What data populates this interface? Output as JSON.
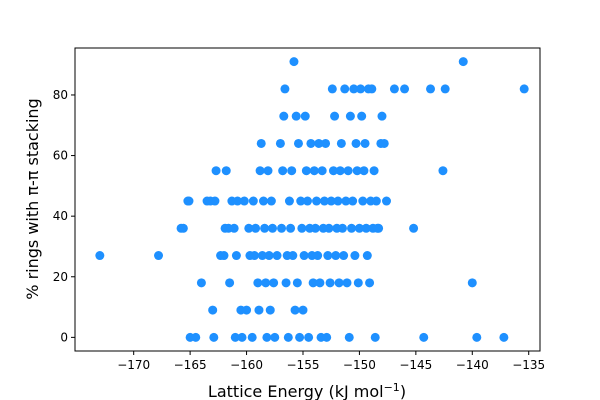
{
  "chart_data": {
    "type": "scatter",
    "xlabel": "Lattice Energy (kJ mol",
    "xlabel_sup": "−1",
    "xlabel_suffix": ")",
    "ylabel": "% rings with π-π stacking",
    "xlim": [
      -175.2,
      -134.0
    ],
    "ylim": [
      -4.5,
      95.5
    ],
    "xticks": [
      -170,
      -165,
      -160,
      -155,
      -150,
      -145,
      -140,
      -135
    ],
    "xtick_labels": [
      "−170",
      "−165",
      "−160",
      "−155",
      "−150",
      "−145",
      "−140",
      "−135"
    ],
    "yticks": [
      0,
      20,
      40,
      60,
      80
    ],
    "ytick_labels": [
      "0",
      "20",
      "40",
      "60",
      "80"
    ],
    "grid": false,
    "color": "#1e90ff",
    "points": [
      [
        -173.0,
        27
      ],
      [
        -167.8,
        27
      ],
      [
        -165.8,
        36
      ],
      [
        -165.6,
        36
      ],
      [
        -165.2,
        45
      ],
      [
        -165.1,
        45
      ],
      [
        -165.0,
        0
      ],
      [
        -164.5,
        0
      ],
      [
        -164.0,
        18
      ],
      [
        -163.5,
        45
      ],
      [
        -163.2,
        45
      ],
      [
        -163.0,
        9
      ],
      [
        -162.9,
        0
      ],
      [
        -162.8,
        45
      ],
      [
        -162.7,
        55
      ],
      [
        -162.3,
        27
      ],
      [
        -162.0,
        27
      ],
      [
        -161.9,
        36
      ],
      [
        -161.8,
        55
      ],
      [
        -161.6,
        36
      ],
      [
        -161.5,
        18
      ],
      [
        -161.3,
        45
      ],
      [
        -161.1,
        36
      ],
      [
        -161.0,
        0
      ],
      [
        -160.9,
        27
      ],
      [
        -160.8,
        45
      ],
      [
        -160.5,
        9
      ],
      [
        -160.4,
        0
      ],
      [
        -160.2,
        45
      ],
      [
        -160.0,
        9
      ],
      [
        -159.8,
        36
      ],
      [
        -159.7,
        27
      ],
      [
        -159.5,
        0
      ],
      [
        -159.4,
        45
      ],
      [
        -159.3,
        27
      ],
      [
        -159.2,
        36
      ],
      [
        -159.0,
        18
      ],
      [
        -158.9,
        9
      ],
      [
        -158.8,
        55
      ],
      [
        -158.7,
        64
      ],
      [
        -158.6,
        27
      ],
      [
        -158.5,
        45
      ],
      [
        -158.4,
        36
      ],
      [
        -158.3,
        18
      ],
      [
        -158.2,
        0
      ],
      [
        -158.1,
        55
      ],
      [
        -158.0,
        27
      ],
      [
        -157.9,
        9
      ],
      [
        -157.8,
        45
      ],
      [
        -157.7,
        36
      ],
      [
        -157.6,
        18
      ],
      [
        -157.5,
        0
      ],
      [
        -157.3,
        27
      ],
      [
        -157.0,
        64
      ],
      [
        -156.9,
        36
      ],
      [
        -156.8,
        55
      ],
      [
        -156.7,
        73
      ],
      [
        -156.6,
        82
      ],
      [
        -156.5,
        18
      ],
      [
        -156.4,
        27
      ],
      [
        -156.3,
        0
      ],
      [
        -156.2,
        45
      ],
      [
        -156.1,
        36
      ],
      [
        -156.0,
        55
      ],
      [
        -155.9,
        27
      ],
      [
        -155.8,
        91
      ],
      [
        -155.7,
        9
      ],
      [
        -155.6,
        73
      ],
      [
        -155.5,
        18
      ],
      [
        -155.4,
        64
      ],
      [
        -155.3,
        0
      ],
      [
        -155.2,
        45
      ],
      [
        -155.1,
        36
      ],
      [
        -155.0,
        9
      ],
      [
        -154.9,
        27
      ],
      [
        -154.8,
        73
      ],
      [
        -154.7,
        55
      ],
      [
        -154.6,
        45
      ],
      [
        -154.5,
        0
      ],
      [
        -154.4,
        36
      ],
      [
        -154.3,
        64
      ],
      [
        -154.2,
        27
      ],
      [
        -154.1,
        18
      ],
      [
        -154.0,
        55
      ],
      [
        -153.9,
        36
      ],
      [
        -153.8,
        45
      ],
      [
        -153.7,
        27
      ],
      [
        -153.6,
        64
      ],
      [
        -153.5,
        18
      ],
      [
        -153.4,
        0
      ],
      [
        -153.3,
        55
      ],
      [
        -153.2,
        36
      ],
      [
        -153.1,
        45
      ],
      [
        -153.0,
        64
      ],
      [
        -152.9,
        0
      ],
      [
        -152.8,
        27
      ],
      [
        -152.7,
        36
      ],
      [
        -152.6,
        18
      ],
      [
        -152.5,
        45
      ],
      [
        -152.4,
        82
      ],
      [
        -152.3,
        55
      ],
      [
        -152.2,
        73
      ],
      [
        -152.1,
        27
      ],
      [
        -152.0,
        36
      ],
      [
        -151.9,
        45
      ],
      [
        -151.8,
        18
      ],
      [
        -151.7,
        55
      ],
      [
        -151.6,
        64
      ],
      [
        -151.5,
        36
      ],
      [
        -151.4,
        27
      ],
      [
        -151.3,
        82
      ],
      [
        -151.2,
        45
      ],
      [
        -151.1,
        18
      ],
      [
        -151.0,
        55
      ],
      [
        -150.9,
        0
      ],
      [
        -150.8,
        73
      ],
      [
        -150.7,
        36
      ],
      [
        -150.6,
        45
      ],
      [
        -150.5,
        82
      ],
      [
        -150.4,
        27
      ],
      [
        -150.3,
        64
      ],
      [
        -150.2,
        55
      ],
      [
        -150.1,
        18
      ],
      [
        -150.0,
        36
      ],
      [
        -149.9,
        82
      ],
      [
        -149.8,
        73
      ],
      [
        -149.7,
        45
      ],
      [
        -149.6,
        55
      ],
      [
        -149.5,
        64
      ],
      [
        -149.4,
        36
      ],
      [
        -149.3,
        27
      ],
      [
        -149.2,
        82
      ],
      [
        -149.1,
        18
      ],
      [
        -149.0,
        45
      ],
      [
        -148.9,
        82
      ],
      [
        -148.8,
        36
      ],
      [
        -148.7,
        55
      ],
      [
        -148.6,
        0
      ],
      [
        -148.5,
        45
      ],
      [
        -148.4,
        36
      ],
      [
        -148.3,
        36
      ],
      [
        -148.1,
        64
      ],
      [
        -148.0,
        73
      ],
      [
        -147.8,
        64
      ],
      [
        -147.6,
        45
      ],
      [
        -146.9,
        82
      ],
      [
        -146.0,
        82
      ],
      [
        -145.2,
        36
      ],
      [
        -144.3,
        0
      ],
      [
        -143.7,
        82
      ],
      [
        -142.6,
        55
      ],
      [
        -142.4,
        82
      ],
      [
        -140.8,
        91
      ],
      [
        -140.0,
        18
      ],
      [
        -139.6,
        0
      ],
      [
        -137.2,
        0
      ],
      [
        -135.4,
        82
      ]
    ]
  }
}
